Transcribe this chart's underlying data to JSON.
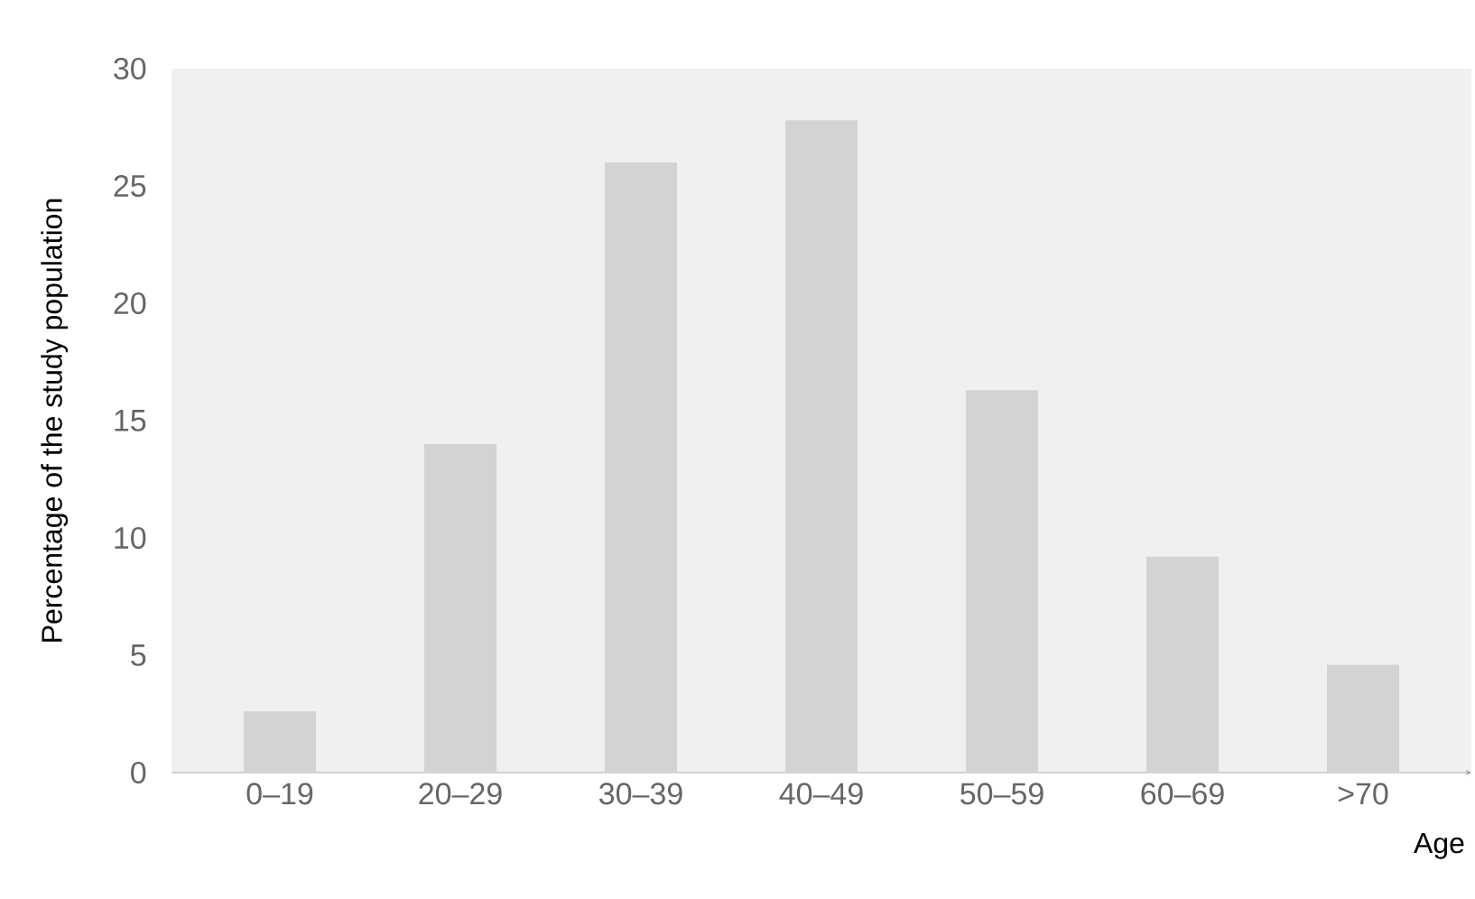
{
  "chart_data": {
    "type": "bar",
    "xlabel": "Age",
    "ylabel": "Percentage of the study population",
    "categories": [
      "0–19",
      "20–29",
      "30–39",
      "40–49",
      "50–59",
      "60–69",
      ">70"
    ],
    "values": [
      2.6,
      14,
      26,
      27.8,
      16.3,
      9.2,
      4.6
    ],
    "color": "#d3d3d3",
    "ylim": [
      0,
      30
    ],
    "yticks": [
      0,
      5,
      10,
      15,
      20,
      25,
      30
    ]
  }
}
